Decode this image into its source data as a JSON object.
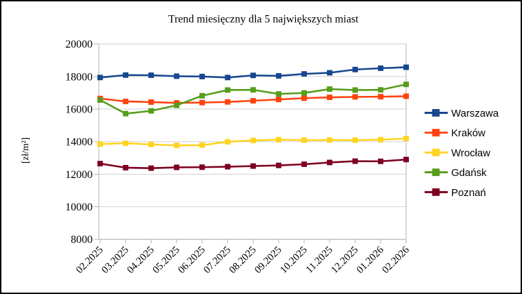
{
  "chart_data": {
    "type": "line",
    "title": "Trend miesięczny dla 5 największych miast",
    "xlabel": "",
    "ylabel": "[zł/m²]",
    "categories": [
      "02.2025",
      "03.2025",
      "04.2025",
      "05.2025",
      "06.2025",
      "07.2025",
      "08.2025",
      "09.2025",
      "10.2025",
      "11.2025",
      "12.2025",
      "01.2026",
      "02.2026"
    ],
    "series": [
      {
        "name": "Warszawa",
        "color": "#17478F",
        "values": [
          17940,
          18090,
          18080,
          18020,
          18000,
          17940,
          18070,
          18040,
          18160,
          18230,
          18430,
          18510,
          18570
        ]
      },
      {
        "name": "Kraków",
        "color": "#FF420E",
        "values": [
          16650,
          16470,
          16430,
          16380,
          16400,
          16440,
          16510,
          16590,
          16670,
          16720,
          16750,
          16760,
          16790
        ]
      },
      {
        "name": "Wrocław",
        "color": "#FFD320",
        "values": [
          13850,
          13900,
          13830,
          13770,
          13780,
          13990,
          14070,
          14120,
          14090,
          14100,
          14090,
          14120,
          14190
        ]
      },
      {
        "name": "Gdańsk",
        "color": "#579D1C",
        "values": [
          16560,
          15720,
          15890,
          16230,
          16820,
          17170,
          17180,
          16930,
          16990,
          17230,
          17170,
          17180,
          17520
        ]
      },
      {
        "name": "Poznań",
        "color": "#7E0021",
        "values": [
          12650,
          12400,
          12370,
          12420,
          12430,
          12460,
          12500,
          12540,
          12610,
          12720,
          12800,
          12790,
          12900
        ]
      }
    ],
    "ylim": [
      8000,
      20000
    ],
    "y_ticks": [
      20000,
      18000,
      16000,
      14000,
      12000,
      10000,
      8000
    ],
    "grid": true,
    "legend_position": "right",
    "marker": "square"
  },
  "colors": {
    "background": "#ffffff",
    "frame_border": "#000000",
    "gridline": "#d0d0d0",
    "axis_line": "#b2b2b2",
    "tick_mark": "#b2b2b2",
    "text": "#000000"
  }
}
